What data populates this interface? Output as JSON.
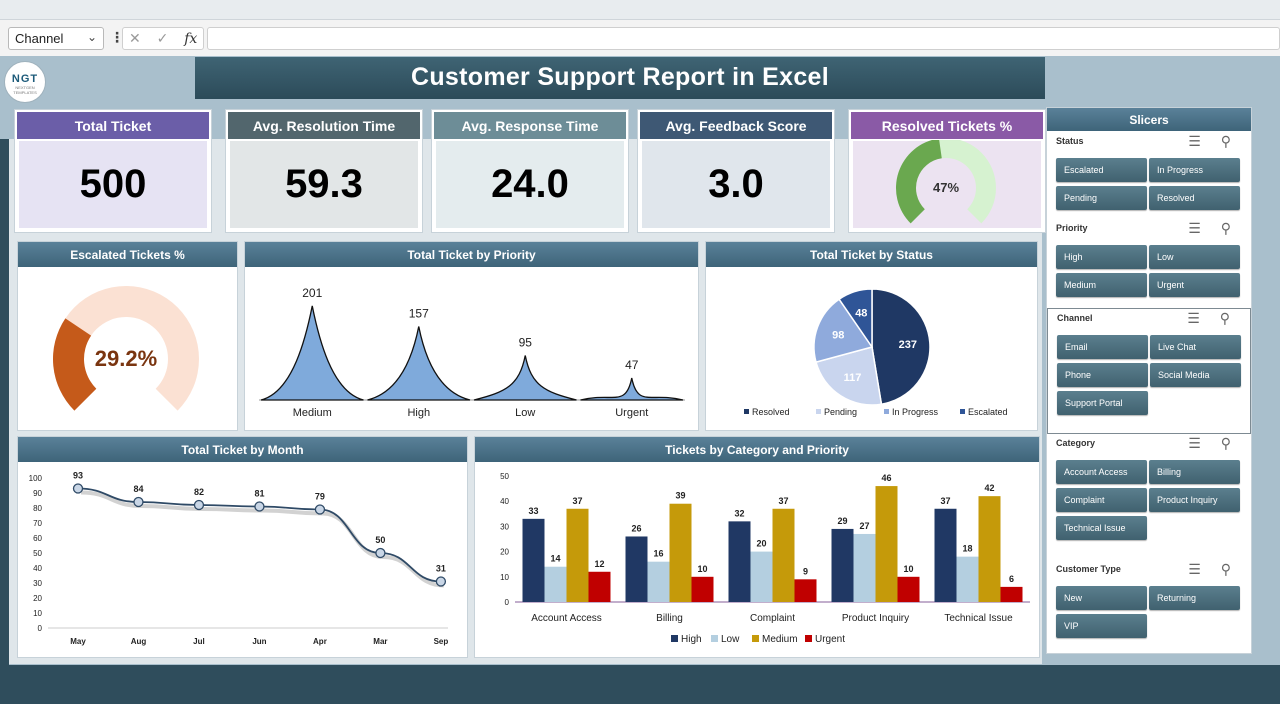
{
  "excel": {
    "namebox": "Channel",
    "formula_symbols": "✕ ✓",
    "fx": "fx"
  },
  "logo": {
    "text": "NGT",
    "subtext": "NEXTGEN TEMPLATES"
  },
  "title": "Customer Support Report in Excel",
  "kpis": [
    {
      "label": "Total Ticket",
      "value": "500",
      "head_color": "#6b5ea8",
      "body_color": "#e6e3f3"
    },
    {
      "label": "Avg. Resolution Time",
      "value": "59.3",
      "head_color": "#52666d",
      "body_color": "#e2e6e7"
    },
    {
      "label": "Avg. Response Time",
      "value": "24.0",
      "head_color": "#6d8d97",
      "body_color": "#e4ecee"
    },
    {
      "label": "Avg. Feedback Score",
      "value": "3.0",
      "head_color": "#3e5874",
      "body_color": "#e0e6ec"
    },
    {
      "label": "Resolved Tickets %",
      "value": "47%",
      "head_color": "#8a5aa6",
      "body_color": "#ece3f1"
    }
  ],
  "resolved_gauge": {
    "percent": 0.47,
    "label": "47%",
    "fill_color": "#6aa84f",
    "track_color": "#d6f2d0"
  },
  "escalated": {
    "title": "Escalated Tickets %",
    "percent": 0.292,
    "label": "29.2%",
    "fill_color": "#c55a1a",
    "track_color": "#fbe1d3"
  },
  "priority_chart": {
    "title": "Total Ticket by Priority",
    "chart_data": {
      "type": "area",
      "categories": [
        "Medium",
        "High",
        "Low",
        "Urgent"
      ],
      "values": [
        201,
        157,
        95,
        47
      ],
      "ylim": [
        0,
        220
      ]
    }
  },
  "status_chart": {
    "title": "Total Ticket by Status",
    "chart_data": {
      "type": "pie",
      "labels": [
        "Resolved",
        "Pending",
        "In Progress",
        "Escalated"
      ],
      "values": [
        237,
        117,
        98,
        48
      ],
      "colors": [
        "#1f3864",
        "#c9d5ee",
        "#8faadc",
        "#2f5597"
      ]
    }
  },
  "month_chart": {
    "title": "Total Ticket by Month",
    "chart_data": {
      "type": "line",
      "x": [
        "May",
        "Aug",
        "Jul",
        "Jun",
        "Apr",
        "Mar",
        "Sep"
      ],
      "values": [
        93,
        84,
        82,
        81,
        79,
        50,
        31
      ],
      "yticks": [
        "0",
        "10",
        "20",
        "30",
        "40",
        "50",
        "60",
        "70",
        "80",
        "90",
        "100"
      ],
      "ylim": [
        0,
        100
      ]
    }
  },
  "category_chart": {
    "title": "Tickets by Category and Priority",
    "chart_data": {
      "type": "bar",
      "categories": [
        "Account Access",
        "Billing",
        "Complaint",
        "Product Inquiry",
        "Technical Issue"
      ],
      "series": [
        {
          "name": "High",
          "color": "#203864",
          "values": [
            33,
            26,
            32,
            29,
            37
          ]
        },
        {
          "name": "Low",
          "color": "#b4cfe0",
          "values": [
            14,
            16,
            20,
            27,
            18
          ]
        },
        {
          "name": "Medium",
          "color": "#c59a0a",
          "values": [
            37,
            39,
            37,
            46,
            42
          ]
        },
        {
          "name": "Urgent",
          "color": "#c00000",
          "values": [
            12,
            10,
            9,
            10,
            6
          ]
        }
      ],
      "yticks": [
        "0",
        "10",
        "20",
        "30",
        "40",
        "50"
      ],
      "ylim": [
        0,
        50
      ]
    }
  },
  "slicers": {
    "title": "Slicers",
    "icons": "☰ ⚲",
    "groups": [
      {
        "name": "Status",
        "items": [
          "Escalated",
          "In Progress",
          "Pending",
          "Resolved"
        ]
      },
      {
        "name": "Priority",
        "items": [
          "High",
          "Low",
          "Medium",
          "Urgent"
        ]
      },
      {
        "name": "Channel",
        "items": [
          "Email",
          "Live Chat",
          "Phone",
          "Social Media",
          "Support Portal"
        ]
      },
      {
        "name": "Category",
        "items": [
          "Account Access",
          "Billing",
          "Complaint",
          "Product Inquiry",
          "Technical Issue"
        ]
      },
      {
        "name": "Customer Type",
        "items": [
          "New",
          "Returning",
          "VIP"
        ]
      }
    ]
  }
}
